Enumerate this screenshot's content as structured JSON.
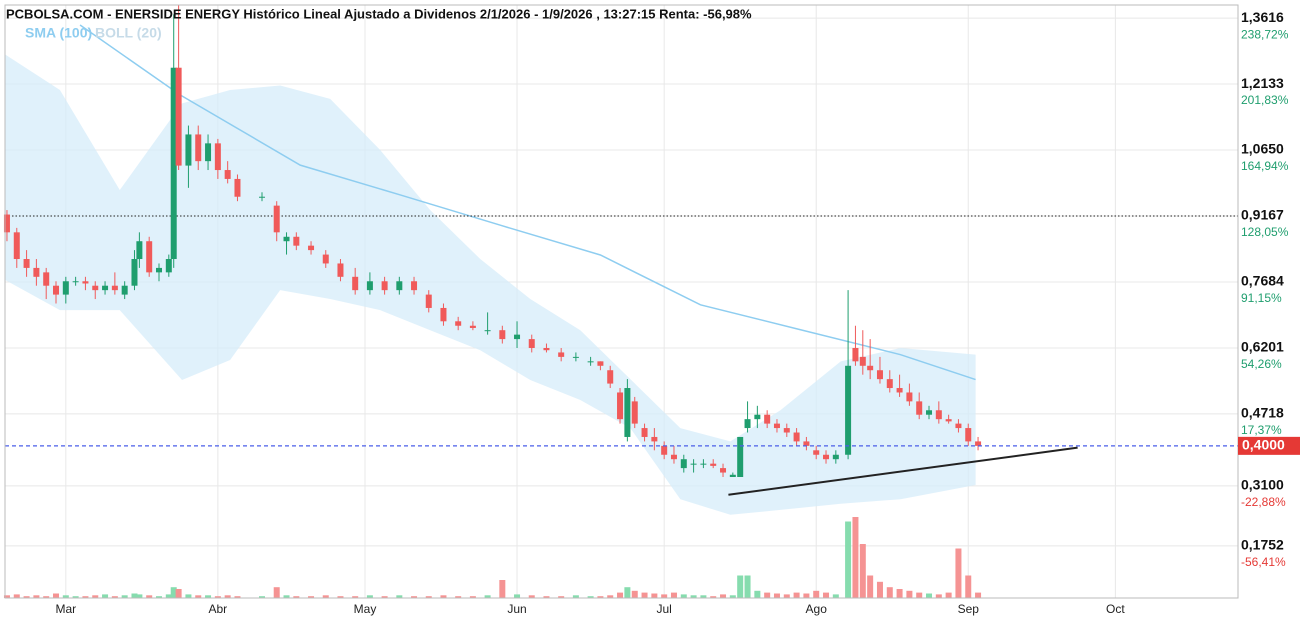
{
  "chart_data": {
    "type": "candlestick",
    "title": "PCBOLSA.COM - ENERSIDE ENERGY Histórico Lineal Ajustado a Dividenos 2/1/2026 - 1/9/2026 , 13:27:15 Renta: -56,98%",
    "up_color": "#1f9e6e",
    "down_color": "#f05a5a",
    "up_volume_color": "#86dcae",
    "down_volume_color": "#f59393",
    "xlim": [
      -12.4,
      239
    ],
    "xticks": [
      {
        "value": 0,
        "label": "Mar"
      },
      {
        "value": 31,
        "label": "Abr"
      },
      {
        "value": 61,
        "label": "May"
      },
      {
        "value": 92,
        "label": "Jun"
      },
      {
        "value": 122,
        "label": "Jul"
      },
      {
        "value": 153,
        "label": "Ago"
      },
      {
        "value": 184,
        "label": "Sep"
      },
      {
        "value": 214,
        "label": "Oct"
      }
    ],
    "ylim": [
      0.058,
      1.391
    ],
    "yticks": [
      {
        "value": 1.3616,
        "label": "1,3616"
      },
      {
        "value": 1.2133,
        "label": "1,2133"
      },
      {
        "value": 1.065,
        "label": "1,0650"
      },
      {
        "value": 0.9167,
        "label": "0,9167"
      },
      {
        "value": 0.7684,
        "label": "0,7684"
      },
      {
        "value": 0.6201,
        "label": "0,6201"
      },
      {
        "value": 0.4718,
        "label": "0,4718"
      },
      {
        "value": 0.31,
        "label": "0,3100"
      },
      {
        "value": 0.1752,
        "label": "0,1752"
      }
    ],
    "y2lim": [
      0.058,
      1.391
    ],
    "y2ticks": [
      {
        "value": 1.3616,
        "label": "238,72%"
      },
      {
        "value": 1.2133,
        "label": "201,83%"
      },
      {
        "value": 1.065,
        "label": "164,94%"
      },
      {
        "value": 0.9167,
        "label": "128,05%"
      },
      {
        "value": 0.7684,
        "label": "91,15%"
      },
      {
        "value": 0.6201,
        "label": "54,26%"
      },
      {
        "value": 0.4718,
        "label": "17,37%"
      },
      {
        "value": 0.31,
        "label": "-22,88%"
      },
      {
        "value": 0.1752,
        "label": "-56,41%"
      }
    ],
    "grid": true,
    "x": [
      -12,
      -10,
      -8,
      -6,
      -4,
      -2,
      0,
      2,
      4,
      6,
      8,
      10,
      12,
      14,
      15,
      17,
      19,
      21,
      22,
      23,
      25,
      27,
      29,
      31,
      33,
      35,
      40,
      43,
      45,
      47,
      50,
      53,
      56,
      59,
      62,
      65,
      68,
      71,
      74,
      77,
      80,
      83,
      86,
      89,
      92,
      95,
      98,
      101,
      104,
      107,
      109,
      111,
      113,
      114.5,
      116,
      118,
      120,
      122,
      124,
      126,
      128,
      130,
      132,
      134,
      136,
      137.5,
      139,
      141,
      143,
      145,
      147,
      149,
      151,
      153,
      155,
      157,
      159.5,
      161,
      162.5,
      164,
      166,
      168,
      170,
      172,
      174,
      176,
      178,
      180,
      182,
      184,
      186
    ],
    "open": [
      0.92,
      0.88,
      0.82,
      0.8,
      0.79,
      0.76,
      0.74,
      0.77,
      0.77,
      0.76,
      0.75,
      0.76,
      0.74,
      0.76,
      0.82,
      0.86,
      0.79,
      0.79,
      0.82,
      1.25,
      1.03,
      1.1,
      1.04,
      1.08,
      1.02,
      1.0,
      0.96,
      0.94,
      0.86,
      0.87,
      0.85,
      0.83,
      0.81,
      0.78,
      0.75,
      0.77,
      0.75,
      0.77,
      0.74,
      0.71,
      0.68,
      0.67,
      0.66,
      0.66,
      0.64,
      0.64,
      0.62,
      0.61,
      0.6,
      0.59,
      0.59,
      0.57,
      0.52,
      0.42,
      0.5,
      0.44,
      0.42,
      0.4,
      0.38,
      0.35,
      0.36,
      0.36,
      0.36,
      0.35,
      0.33,
      0.33,
      0.44,
      0.46,
      0.47,
      0.45,
      0.44,
      0.43,
      0.41,
      0.39,
      0.38,
      0.37,
      0.38,
      0.62,
      0.6,
      0.58,
      0.57,
      0.55,
      0.53,
      0.52,
      0.5,
      0.47,
      0.48,
      0.46,
      0.45,
      0.44,
      0.41
    ],
    "high": [
      0.93,
      0.89,
      0.84,
      0.82,
      0.8,
      0.77,
      0.78,
      0.78,
      0.78,
      0.77,
      0.77,
      0.79,
      0.77,
      0.84,
      0.88,
      0.87,
      0.81,
      0.83,
      1.37,
      1.39,
      1.12,
      1.12,
      1.1,
      1.09,
      1.04,
      1.01,
      0.97,
      0.95,
      0.88,
      0.88,
      0.86,
      0.84,
      0.82,
      0.8,
      0.79,
      0.78,
      0.78,
      0.78,
      0.75,
      0.72,
      0.69,
      0.68,
      0.7,
      0.67,
      0.68,
      0.65,
      0.63,
      0.62,
      0.61,
      0.6,
      0.59,
      0.58,
      0.53,
      0.55,
      0.51,
      0.45,
      0.44,
      0.41,
      0.4,
      0.38,
      0.37,
      0.37,
      0.37,
      0.36,
      0.34,
      0.42,
      0.5,
      0.49,
      0.48,
      0.46,
      0.45,
      0.44,
      0.42,
      0.4,
      0.39,
      0.39,
      0.75,
      0.67,
      0.66,
      0.64,
      0.6,
      0.57,
      0.56,
      0.54,
      0.52,
      0.49,
      0.5,
      0.47,
      0.46,
      0.45,
      0.42
    ],
    "low": [
      0.86,
      0.8,
      0.78,
      0.76,
      0.73,
      0.72,
      0.72,
      0.76,
      0.75,
      0.73,
      0.74,
      0.74,
      0.73,
      0.75,
      0.8,
      0.78,
      0.77,
      0.78,
      0.8,
      1.02,
      0.98,
      1.02,
      1.02,
      1.0,
      0.99,
      0.95,
      0.95,
      0.86,
      0.83,
      0.84,
      0.83,
      0.8,
      0.77,
      0.74,
      0.74,
      0.74,
      0.74,
      0.74,
      0.7,
      0.67,
      0.66,
      0.66,
      0.65,
      0.63,
      0.62,
      0.61,
      0.61,
      0.59,
      0.59,
      0.58,
      0.57,
      0.53,
      0.45,
      0.41,
      0.44,
      0.41,
      0.39,
      0.37,
      0.36,
      0.34,
      0.34,
      0.35,
      0.35,
      0.33,
      0.33,
      0.33,
      0.43,
      0.44,
      0.44,
      0.43,
      0.42,
      0.4,
      0.39,
      0.37,
      0.36,
      0.36,
      0.37,
      0.58,
      0.56,
      0.55,
      0.54,
      0.52,
      0.51,
      0.49,
      0.46,
      0.46,
      0.45,
      0.45,
      0.43,
      0.4,
      0.39
    ],
    "close": [
      0.88,
      0.82,
      0.8,
      0.78,
      0.76,
      0.74,
      0.77,
      0.77,
      0.765,
      0.75,
      0.76,
      0.75,
      0.76,
      0.82,
      0.86,
      0.79,
      0.8,
      0.82,
      1.25,
      1.03,
      1.1,
      1.04,
      1.08,
      1.02,
      1.0,
      0.96,
      0.96,
      0.88,
      0.87,
      0.85,
      0.84,
      0.81,
      0.78,
      0.75,
      0.77,
      0.75,
      0.77,
      0.75,
      0.71,
      0.68,
      0.67,
      0.665,
      0.66,
      0.64,
      0.65,
      0.62,
      0.615,
      0.6,
      0.6,
      0.59,
      0.58,
      0.54,
      0.46,
      0.53,
      0.45,
      0.42,
      0.41,
      0.38,
      0.37,
      0.37,
      0.36,
      0.36,
      0.355,
      0.34,
      0.335,
      0.42,
      0.46,
      0.47,
      0.45,
      0.44,
      0.43,
      0.41,
      0.4,
      0.38,
      0.37,
      0.38,
      0.58,
      0.59,
      0.58,
      0.57,
      0.55,
      0.53,
      0.52,
      0.5,
      0.47,
      0.48,
      0.46,
      0.455,
      0.44,
      0.41,
      0.4
    ],
    "volume": [
      3,
      4,
      2,
      3,
      2,
      5,
      3,
      2,
      2,
      3,
      4,
      2,
      3,
      5,
      4,
      3,
      2,
      4,
      12,
      10,
      4,
      3,
      3,
      2,
      3,
      2,
      2,
      12,
      3,
      2,
      2,
      3,
      2,
      2,
      3,
      2,
      3,
      2,
      2,
      3,
      2,
      2,
      3,
      20,
      4,
      3,
      2,
      2,
      3,
      2,
      2,
      3,
      6,
      12,
      8,
      6,
      5,
      4,
      6,
      4,
      3,
      3,
      2,
      4,
      3,
      25,
      25,
      8,
      6,
      5,
      4,
      6,
      5,
      8,
      6,
      4,
      85,
      90,
      60,
      25,
      18,
      12,
      10,
      8,
      6,
      5,
      4,
      6,
      55,
      25,
      6
    ],
    "volume_lim": [
      0,
      100
    ],
    "series": [
      {
        "name": "SMA (100)",
        "color": "#8ecdf0",
        "x": [
          2.9,
          23.3,
          47.8,
          68.2,
          88.6,
          109,
          129.4,
          149.8,
          170.2,
          185.5
        ],
        "values": [
          1.346,
          1.189,
          1.031,
          0.964,
          0.896,
          0.829,
          0.717,
          0.661,
          0.605,
          0.549
        ]
      },
      {
        "name": "BOLL (20)",
        "color": "#d6ecfa",
        "x": [
          -12.4,
          -1.2,
          11,
          23.7,
          33.5,
          43.7,
          53.9,
          64.1,
          74.3,
          84.5,
          94.7,
          104.9,
          115.1,
          125.3,
          135.5,
          145.7,
          158,
          170.2,
          185.5
        ],
        "upper": [
          1.28,
          1.2,
          0.975,
          1.17,
          1.2,
          1.21,
          1.18,
          1.065,
          0.93,
          0.82,
          0.73,
          0.66,
          0.55,
          0.44,
          0.41,
          0.48,
          0.59,
          0.62,
          0.605
        ],
        "lower": [
          0.773,
          0.705,
          0.705,
          0.548,
          0.593,
          0.75,
          0.73,
          0.705,
          0.66,
          0.615,
          0.548,
          0.503,
          0.44,
          0.28,
          0.245,
          0.256,
          0.27,
          0.28,
          0.312
        ]
      }
    ],
    "trendline": {
      "x": [
        135.1,
        206.3
      ],
      "values": [
        0.29,
        0.396
      ]
    },
    "reference_line": 0.9167,
    "last_price": {
      "value": 0.4,
      "label": "0,4000"
    }
  }
}
